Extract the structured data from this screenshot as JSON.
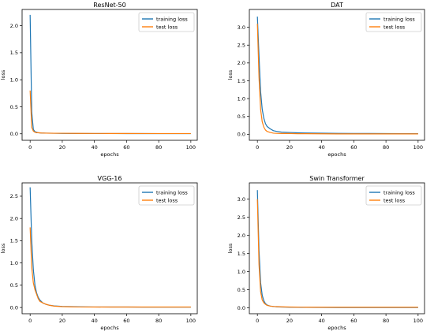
{
  "figure": {
    "layout": "2x2 grid of line charts"
  },
  "chart_data": [
    {
      "type": "line",
      "title": "ResNet-50",
      "xlabel": "epochs",
      "ylabel": "loss",
      "xlim": [
        -5,
        104
      ],
      "ylim": [
        -0.12,
        2.3
      ],
      "xticks": [
        0,
        20,
        40,
        60,
        80,
        100
      ],
      "yticks": [
        0.0,
        0.5,
        1.0,
        1.5,
        2.0
      ],
      "grid": false,
      "legend": "top-right",
      "series": [
        {
          "name": "training loss",
          "color": "#1f77b4",
          "x": [
            0,
            1,
            2,
            3,
            4,
            5,
            7,
            10,
            15,
            20,
            30,
            40,
            50,
            60,
            70,
            80,
            90,
            100
          ],
          "y": [
            2.2,
            0.4,
            0.08,
            0.04,
            0.03,
            0.02,
            0.015,
            0.012,
            0.01,
            0.008,
            0.006,
            0.005,
            0.005,
            0.004,
            0.004,
            0.003,
            0.003,
            0.003
          ]
        },
        {
          "name": "test loss",
          "color": "#ff7f0e",
          "x": [
            0,
            1,
            2,
            3,
            4,
            5,
            7,
            10,
            15,
            20,
            30,
            40,
            50,
            60,
            70,
            80,
            90,
            100
          ],
          "y": [
            0.8,
            0.12,
            0.05,
            0.03,
            0.02,
            0.02,
            0.015,
            0.012,
            0.01,
            0.01,
            0.008,
            0.007,
            0.006,
            0.006,
            0.005,
            0.005,
            0.005,
            0.005
          ]
        }
      ]
    },
    {
      "type": "line",
      "title": "DAT",
      "xlabel": "epochs",
      "ylabel": "loss",
      "xlim": [
        -5,
        104
      ],
      "ylim": [
        -0.17,
        3.5
      ],
      "xticks": [
        0,
        20,
        40,
        60,
        80,
        100
      ],
      "yticks": [
        0.0,
        0.5,
        1.0,
        1.5,
        2.0,
        2.5,
        3.0
      ],
      "grid": false,
      "legend": "top-right",
      "series": [
        {
          "name": "training loss",
          "color": "#1f77b4",
          "x": [
            0,
            1,
            2,
            3,
            4,
            5,
            6,
            8,
            10,
            12,
            15,
            20,
            25,
            30,
            40,
            50,
            60,
            70,
            80,
            90,
            100
          ],
          "y": [
            3.3,
            2.2,
            1.2,
            0.7,
            0.45,
            0.3,
            0.22,
            0.15,
            0.1,
            0.08,
            0.06,
            0.05,
            0.04,
            0.035,
            0.03,
            0.025,
            0.02,
            0.02,
            0.018,
            0.015,
            0.015
          ]
        },
        {
          "name": "test loss",
          "color": "#ff7f0e",
          "x": [
            0,
            1,
            2,
            3,
            4,
            5,
            6,
            8,
            10,
            12,
            15,
            20,
            25,
            30,
            40,
            50,
            60,
            70,
            80,
            90,
            100
          ],
          "y": [
            3.1,
            1.6,
            0.7,
            0.35,
            0.2,
            0.12,
            0.08,
            0.05,
            0.03,
            0.025,
            0.02,
            0.02,
            0.015,
            0.015,
            0.012,
            0.01,
            0.01,
            0.01,
            0.01,
            0.01,
            0.01
          ]
        }
      ]
    },
    {
      "type": "line",
      "title": "VGG-16",
      "xlabel": "epochs",
      "ylabel": "loss",
      "xlim": [
        -5,
        104
      ],
      "ylim": [
        -0.14,
        2.8
      ],
      "xticks": [
        0,
        20,
        40,
        60,
        80,
        100
      ],
      "yticks": [
        0.0,
        0.5,
        1.0,
        1.5,
        2.0,
        2.5
      ],
      "grid": false,
      "legend": "top-right",
      "series": [
        {
          "name": "training loss",
          "color": "#1f77b4",
          "x": [
            0,
            1,
            2,
            3,
            4,
            5,
            6,
            8,
            10,
            12,
            15,
            20,
            25,
            30,
            40,
            50,
            60,
            70,
            80,
            90,
            100
          ],
          "y": [
            2.7,
            1.5,
            0.85,
            0.5,
            0.33,
            0.23,
            0.17,
            0.1,
            0.07,
            0.05,
            0.035,
            0.025,
            0.02,
            0.015,
            0.012,
            0.01,
            0.01,
            0.008,
            0.008,
            0.007,
            0.007
          ]
        },
        {
          "name": "test loss",
          "color": "#ff7f0e",
          "x": [
            0,
            1,
            2,
            3,
            4,
            5,
            6,
            8,
            10,
            12,
            15,
            20,
            25,
            30,
            40,
            50,
            60,
            70,
            80,
            90,
            100
          ],
          "y": [
            1.8,
            0.9,
            0.55,
            0.4,
            0.3,
            0.2,
            0.14,
            0.1,
            0.07,
            0.05,
            0.03,
            0.02,
            0.015,
            0.012,
            0.01,
            0.01,
            0.01,
            0.01,
            0.01,
            0.01,
            0.01
          ]
        }
      ]
    },
    {
      "type": "line",
      "title": "Swin Transformer",
      "xlabel": "epochs",
      "ylabel": "loss",
      "xlim": [
        -5,
        104
      ],
      "ylim": [
        -0.16,
        3.45
      ],
      "xticks": [
        0,
        20,
        40,
        60,
        80,
        100
      ],
      "yticks": [
        0.0,
        0.5,
        1.0,
        1.5,
        2.0,
        2.5,
        3.0
      ],
      "grid": false,
      "legend": "top-right",
      "series": [
        {
          "name": "training loss",
          "color": "#1f77b4",
          "x": [
            0,
            1,
            2,
            3,
            4,
            5,
            6,
            8,
            10,
            12,
            15,
            20,
            25,
            30,
            40,
            50,
            60,
            70,
            80,
            90,
            100
          ],
          "y": [
            3.25,
            1.6,
            0.7,
            0.35,
            0.2,
            0.12,
            0.08,
            0.05,
            0.04,
            0.03,
            0.025,
            0.02,
            0.018,
            0.016,
            0.014,
            0.012,
            0.011,
            0.01,
            0.01,
            0.01,
            0.01
          ]
        },
        {
          "name": "test loss",
          "color": "#ff7f0e",
          "x": [
            0,
            1,
            2,
            3,
            4,
            5,
            6,
            8,
            10,
            12,
            15,
            20,
            25,
            30,
            40,
            50,
            60,
            70,
            80,
            90,
            100
          ],
          "y": [
            3.0,
            1.2,
            0.45,
            0.22,
            0.14,
            0.1,
            0.07,
            0.05,
            0.04,
            0.035,
            0.03,
            0.025,
            0.022,
            0.02,
            0.02,
            0.02,
            0.02,
            0.02,
            0.02,
            0.02,
            0.02
          ]
        }
      ]
    }
  ]
}
